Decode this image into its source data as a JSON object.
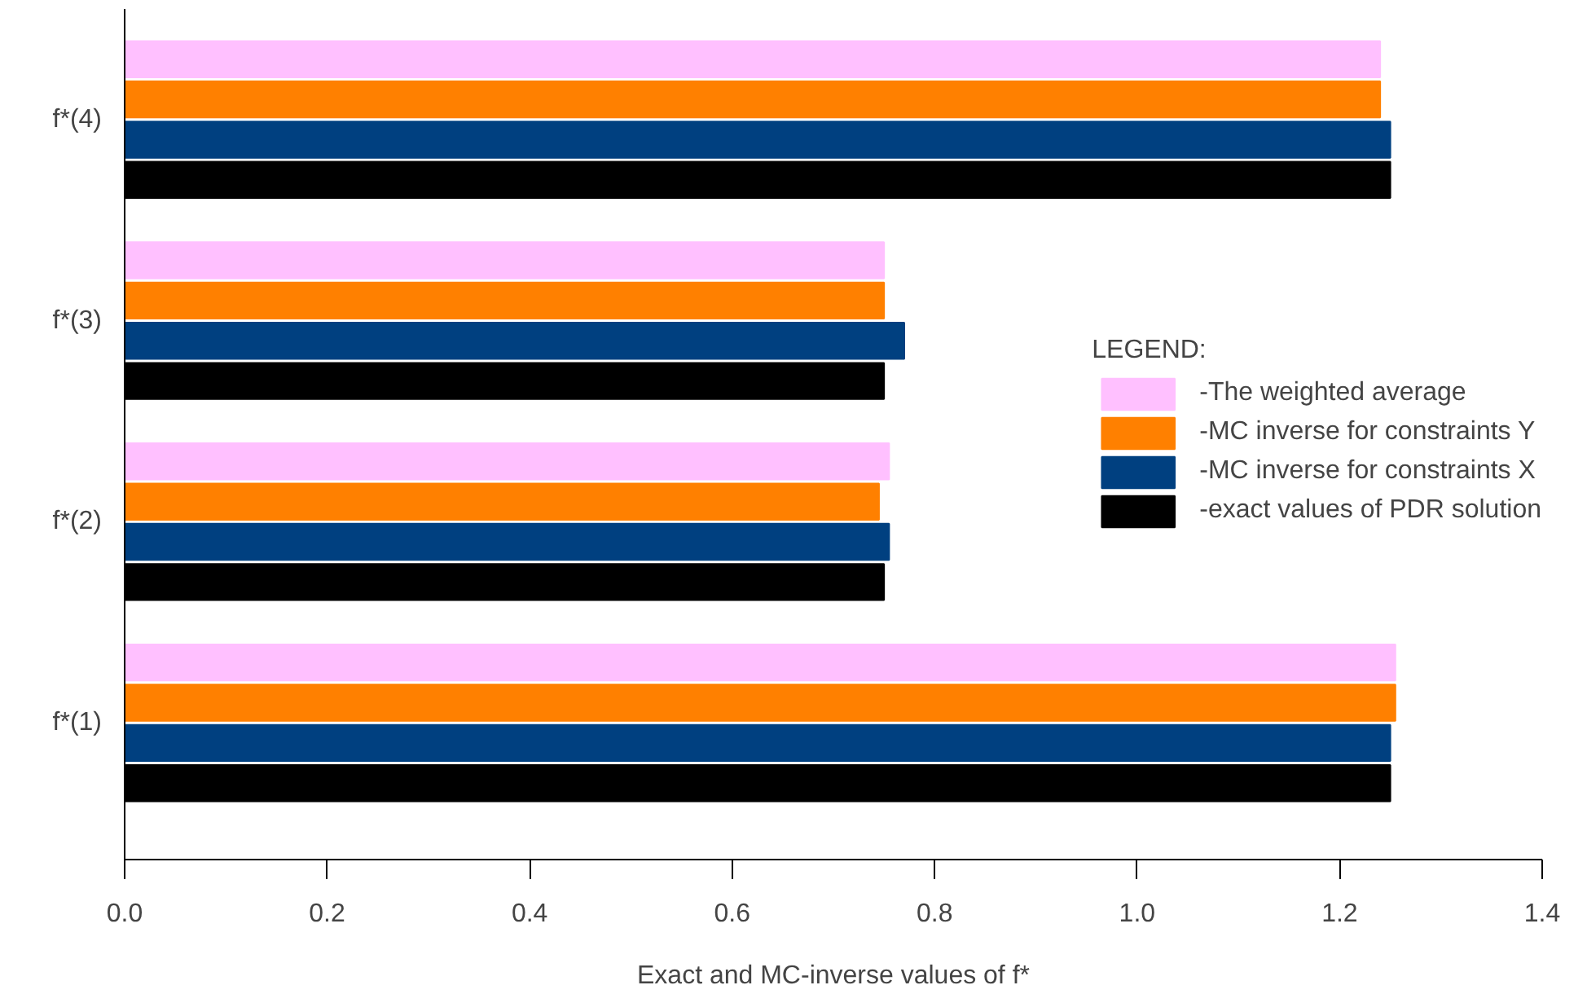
{
  "chart_data": {
    "type": "bar",
    "orientation": "horizontal",
    "categories": [
      "f*(4)",
      "f*(3)",
      "f*(2)",
      "f*(1)"
    ],
    "series": [
      {
        "name": "-The weighted average",
        "color": "#ffc0ff",
        "values": [
          1.24,
          0.75,
          0.755,
          1.255
        ]
      },
      {
        "name": "-MC inverse for constraints Y",
        "color": "#ff8000",
        "values": [
          1.24,
          0.75,
          0.745,
          1.255
        ]
      },
      {
        "name": "-MC inverse for constraints X",
        "color": "#004080",
        "values": [
          1.25,
          0.77,
          0.755,
          1.25
        ]
      },
      {
        "name": "-exact values of PDR solution",
        "color": "#000000",
        "values": [
          1.25,
          0.75,
          0.75,
          1.25
        ]
      }
    ],
    "xlabel": "Exact and MC-inverse values of f*",
    "xlim": [
      0,
      1.4
    ],
    "xticks": [
      {
        "value": 0,
        "label": "0.0"
      },
      0.2,
      0.4,
      0.6,
      0.8,
      {
        "value": 1,
        "label": "1.0"
      },
      1.2,
      1.4
    ],
    "legend": "right",
    "legend_title": "LEGEND:",
    "grid": false
  }
}
